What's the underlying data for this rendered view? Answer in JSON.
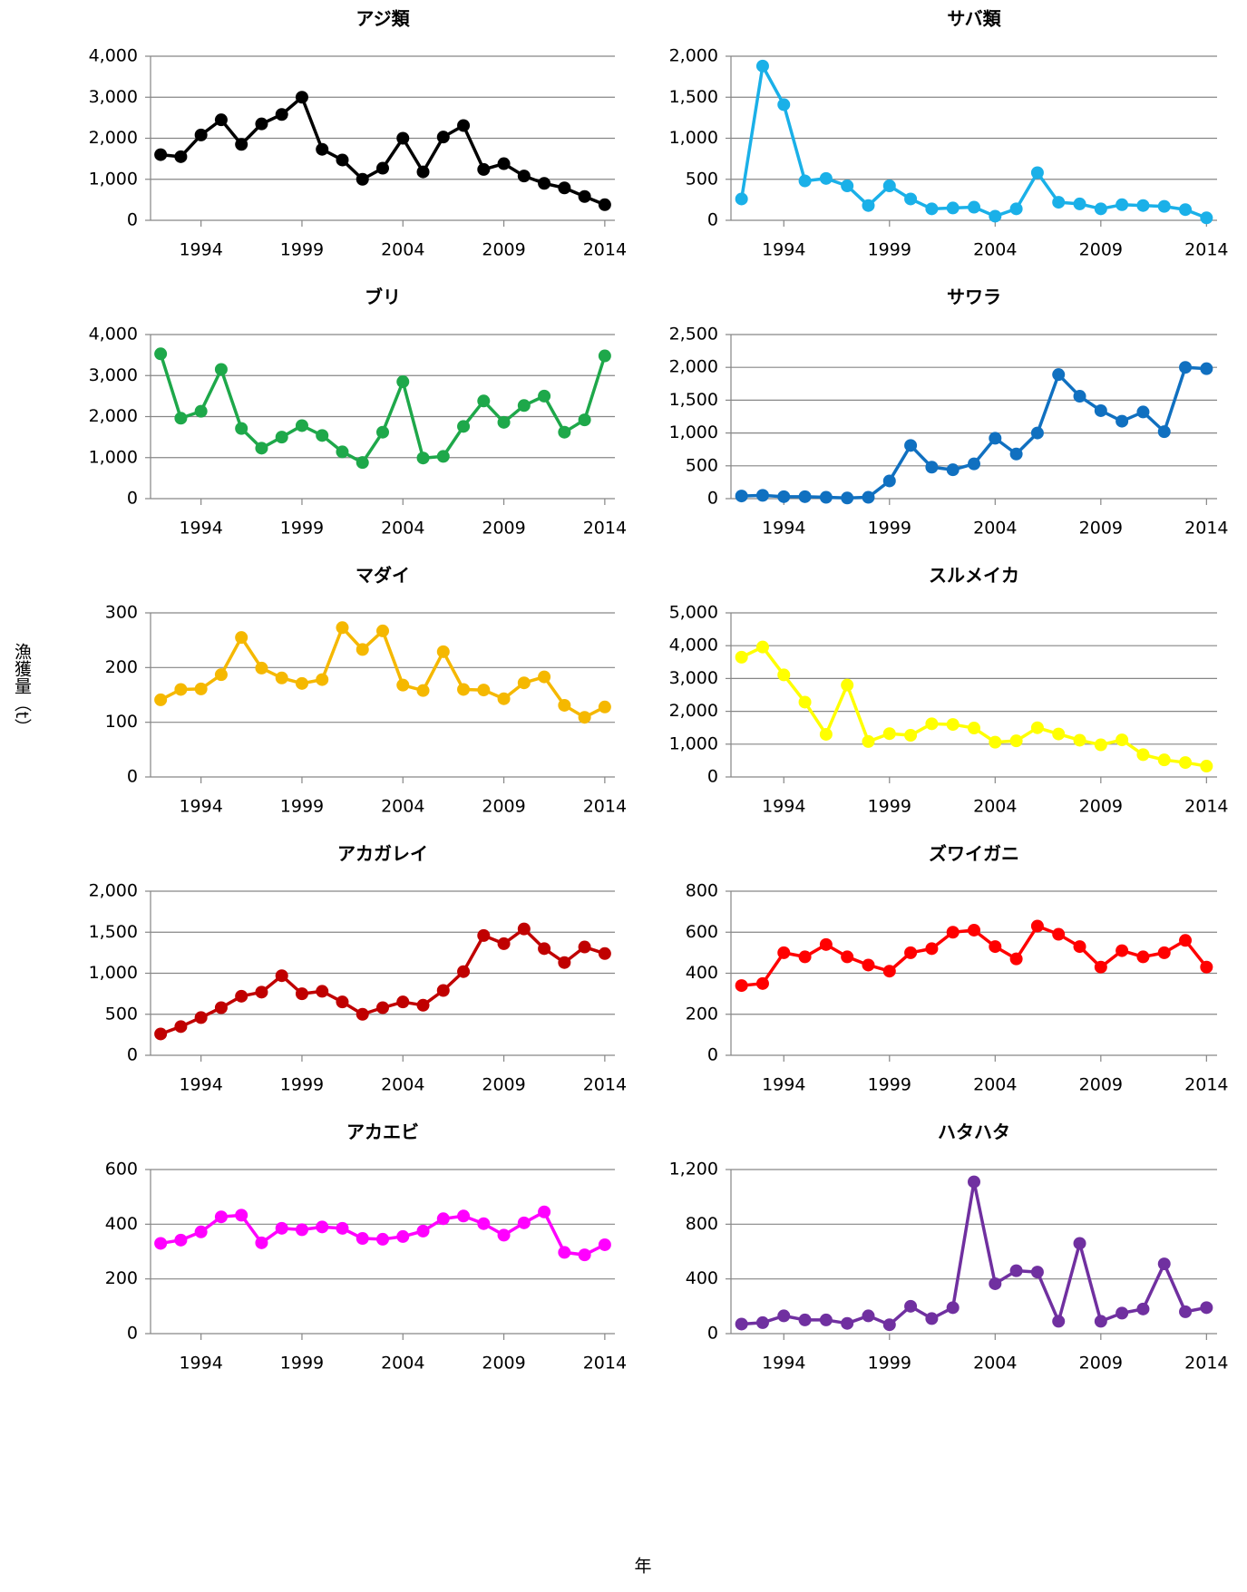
{
  "y_label": "漁獲量（t）",
  "x_label": "年",
  "chart_data": [
    {
      "type": "line",
      "title": "アジ類",
      "x": [
        1992,
        1993,
        1994,
        1995,
        1996,
        1997,
        1998,
        1999,
        2000,
        2001,
        2002,
        2003,
        2004,
        2005,
        2006,
        2007,
        2008,
        2009,
        2010,
        2011,
        2012,
        2013,
        2014
      ],
      "xlim": [
        1991.5,
        2014.5
      ],
      "xticks": [
        1994,
        1999,
        2004,
        2009,
        2014
      ],
      "ylim": [
        0,
        4000
      ],
      "yticks": [
        0,
        {
          "value": 1000,
          "label": "1,000"
        },
        {
          "value": 2000,
          "label": "2,000"
        },
        {
          "value": 3000,
          "label": "3,000"
        },
        {
          "value": 4000,
          "label": "4,000"
        }
      ],
      "grid": true,
      "series": [
        {
          "color": "#000000",
          "values": [
            1600,
            1550,
            2080,
            2450,
            1850,
            2350,
            2580,
            3000,
            1730,
            1470,
            1000,
            1270,
            2000,
            1180,
            2030,
            2310,
            1240,
            1380,
            1080,
            900,
            790,
            580,
            380
          ]
        }
      ]
    },
    {
      "type": "line",
      "title": "サバ類",
      "x": [
        1992,
        1993,
        1994,
        1995,
        1996,
        1997,
        1998,
        1999,
        2000,
        2001,
        2002,
        2003,
        2004,
        2005,
        2006,
        2007,
        2008,
        2009,
        2010,
        2011,
        2012,
        2013,
        2014
      ],
      "xlim": [
        1991.5,
        2014.5
      ],
      "xticks": [
        1994,
        1999,
        2004,
        2009,
        2014
      ],
      "ylim": [
        0,
        2000
      ],
      "yticks": [
        0,
        500,
        {
          "value": 1000,
          "label": "1,000"
        },
        {
          "value": 1500,
          "label": "1,500"
        },
        {
          "value": 2000,
          "label": "2,000"
        }
      ],
      "grid": true,
      "series": [
        {
          "color": "#1ab0e8",
          "values": [
            260,
            1880,
            1410,
            480,
            510,
            420,
            180,
            420,
            260,
            140,
            150,
            160,
            50,
            140,
            580,
            220,
            200,
            140,
            190,
            180,
            170,
            130,
            30
          ]
        }
      ]
    },
    {
      "type": "line",
      "title": "ブリ",
      "x": [
        1992,
        1993,
        1994,
        1995,
        1996,
        1997,
        1998,
        1999,
        2000,
        2001,
        2002,
        2003,
        2004,
        2005,
        2006,
        2007,
        2008,
        2009,
        2010,
        2011,
        2012,
        2013,
        2014
      ],
      "xlim": [
        1991.5,
        2014.5
      ],
      "xticks": [
        1994,
        1999,
        2004,
        2009,
        2014
      ],
      "ylim": [
        0,
        4000
      ],
      "yticks": [
        0,
        {
          "value": 1000,
          "label": "1,000"
        },
        {
          "value": 2000,
          "label": "2,000"
        },
        {
          "value": 3000,
          "label": "3,000"
        },
        {
          "value": 4000,
          "label": "4,000"
        }
      ],
      "grid": true,
      "series": [
        {
          "color": "#1ea84a",
          "values": [
            3530,
            1960,
            2130,
            3150,
            1710,
            1230,
            1500,
            1780,
            1540,
            1140,
            880,
            1620,
            2850,
            990,
            1030,
            1760,
            2380,
            1860,
            2270,
            2500,
            1620,
            1920,
            3480
          ]
        }
      ]
    },
    {
      "type": "line",
      "title": "サワラ",
      "x": [
        1992,
        1993,
        1994,
        1995,
        1996,
        1997,
        1998,
        1999,
        2000,
        2001,
        2002,
        2003,
        2004,
        2005,
        2006,
        2007,
        2008,
        2009,
        2010,
        2011,
        2012,
        2013,
        2014
      ],
      "xlim": [
        1991.5,
        2014.5
      ],
      "xticks": [
        1994,
        1999,
        2004,
        2009,
        2014
      ],
      "ylim": [
        0,
        2500
      ],
      "yticks": [
        0,
        500,
        {
          "value": 1000,
          "label": "1,000"
        },
        {
          "value": 1500,
          "label": "1,500"
        },
        {
          "value": 2000,
          "label": "2,000"
        },
        {
          "value": 2500,
          "label": "2,500"
        }
      ],
      "grid": true,
      "series": [
        {
          "color": "#1070c0",
          "values": [
            40,
            50,
            30,
            30,
            20,
            10,
            20,
            270,
            810,
            480,
            440,
            530,
            920,
            680,
            1000,
            1890,
            1560,
            1340,
            1180,
            1320,
            1020,
            2000,
            1980
          ]
        }
      ]
    },
    {
      "type": "line",
      "title": "マダイ",
      "x": [
        1992,
        1993,
        1994,
        1995,
        1996,
        1997,
        1998,
        1999,
        2000,
        2001,
        2002,
        2003,
        2004,
        2005,
        2006,
        2007,
        2008,
        2009,
        2010,
        2011,
        2012,
        2013,
        2014
      ],
      "xlim": [
        1991.5,
        2014.5
      ],
      "xticks": [
        1994,
        1999,
        2004,
        2009,
        2014
      ],
      "ylim": [
        0,
        300
      ],
      "yticks": [
        0,
        100,
        200,
        300
      ],
      "grid": true,
      "series": [
        {
          "color": "#f5b800",
          "values": [
            141,
            160,
            161,
            187,
            255,
            199,
            181,
            171,
            178,
            273,
            233,
            267,
            168,
            158,
            229,
            160,
            159,
            143,
            172,
            183,
            131,
            109,
            128
          ]
        }
      ]
    },
    {
      "type": "line",
      "title": "スルメイカ",
      "x": [
        1992,
        1993,
        1994,
        1995,
        1996,
        1997,
        1998,
        1999,
        2000,
        2001,
        2002,
        2003,
        2004,
        2005,
        2006,
        2007,
        2008,
        2009,
        2010,
        2011,
        2012,
        2013,
        2014
      ],
      "xlim": [
        1991.5,
        2014.5
      ],
      "xticks": [
        1994,
        1999,
        2004,
        2009,
        2014
      ],
      "ylim": [
        0,
        5000
      ],
      "yticks": [
        0,
        {
          "value": 1000,
          "label": "1,000"
        },
        {
          "value": 2000,
          "label": "2,000"
        },
        {
          "value": 3000,
          "label": "3,000"
        },
        {
          "value": 4000,
          "label": "4,000"
        },
        {
          "value": 5000,
          "label": "5,000"
        }
      ],
      "grid": true,
      "series": [
        {
          "color": "#ffff00",
          "values": [
            3650,
            3960,
            3110,
            2280,
            1300,
            2800,
            1080,
            1320,
            1270,
            1620,
            1600,
            1490,
            1060,
            1100,
            1500,
            1310,
            1120,
            980,
            1130,
            680,
            520,
            440,
            330
          ]
        }
      ]
    },
    {
      "type": "line",
      "title": "アカガレイ",
      "x": [
        1992,
        1993,
        1994,
        1995,
        1996,
        1997,
        1998,
        1999,
        2000,
        2001,
        2002,
        2003,
        2004,
        2005,
        2006,
        2007,
        2008,
        2009,
        2010,
        2011,
        2012,
        2013,
        2014
      ],
      "xlim": [
        1991.5,
        2014.5
      ],
      "xticks": [
        1994,
        1999,
        2004,
        2009,
        2014
      ],
      "ylim": [
        0,
        2000
      ],
      "yticks": [
        0,
        500,
        {
          "value": 1000,
          "label": "1,000"
        },
        {
          "value": 1500,
          "label": "1,500"
        },
        {
          "value": 2000,
          "label": "2,000"
        }
      ],
      "grid": true,
      "series": [
        {
          "color": "#c00000",
          "values": [
            260,
            350,
            460,
            580,
            720,
            770,
            970,
            750,
            780,
            650,
            500,
            580,
            650,
            610,
            790,
            1020,
            1460,
            1360,
            1540,
            1300,
            1130,
            1320,
            1240
          ]
        }
      ]
    },
    {
      "type": "line",
      "title": "ズワイガニ",
      "x": [
        1992,
        1993,
        1994,
        1995,
        1996,
        1997,
        1998,
        1999,
        2000,
        2001,
        2002,
        2003,
        2004,
        2005,
        2006,
        2007,
        2008,
        2009,
        2010,
        2011,
        2012,
        2013,
        2014
      ],
      "xlim": [
        1991.5,
        2014.5
      ],
      "xticks": [
        1994,
        1999,
        2004,
        2009,
        2014
      ],
      "ylim": [
        0,
        800
      ],
      "yticks": [
        0,
        200,
        400,
        600,
        800
      ],
      "grid": true,
      "series": [
        {
          "color": "#ff0000",
          "values": [
            340,
            350,
            500,
            480,
            540,
            480,
            440,
            410,
            500,
            520,
            600,
            610,
            530,
            470,
            630,
            590,
            530,
            430,
            510,
            480,
            500,
            560,
            430
          ]
        }
      ]
    },
    {
      "type": "line",
      "title": "アカエビ",
      "x": [
        1992,
        1993,
        1994,
        1995,
        1996,
        1997,
        1998,
        1999,
        2000,
        2001,
        2002,
        2003,
        2004,
        2005,
        2006,
        2007,
        2008,
        2009,
        2010,
        2011,
        2012,
        2013,
        2014
      ],
      "xlim": [
        1991.5,
        2014.5
      ],
      "xticks": [
        1994,
        1999,
        2004,
        2009,
        2014
      ],
      "ylim": [
        0,
        600
      ],
      "yticks": [
        0,
        200,
        400,
        600
      ],
      "grid": true,
      "series": [
        {
          "color": "#ff00ff",
          "values": [
            330,
            342,
            372,
            427,
            433,
            332,
            385,
            380,
            390,
            385,
            348,
            345,
            355,
            375,
            420,
            430,
            402,
            360,
            405,
            445,
            297,
            288,
            325
          ]
        }
      ]
    },
    {
      "type": "line",
      "title": "ハタハタ",
      "x": [
        1992,
        1993,
        1994,
        1995,
        1996,
        1997,
        1998,
        1999,
        2000,
        2001,
        2002,
        2003,
        2004,
        2005,
        2006,
        2007,
        2008,
        2009,
        2010,
        2011,
        2012,
        2013,
        2014
      ],
      "xlim": [
        1991.5,
        2014.5
      ],
      "xticks": [
        1994,
        1999,
        2004,
        2009,
        2014
      ],
      "ylim": [
        0,
        1200
      ],
      "yticks": [
        0,
        400,
        800,
        {
          "value": 1200,
          "label": "1,200"
        }
      ],
      "grid": true,
      "series": [
        {
          "color": "#7030a0",
          "values": [
            70,
            80,
            130,
            100,
            100,
            75,
            130,
            65,
            200,
            110,
            190,
            1110,
            365,
            460,
            450,
            90,
            660,
            90,
            150,
            180,
            510,
            160,
            190
          ]
        }
      ]
    }
  ]
}
